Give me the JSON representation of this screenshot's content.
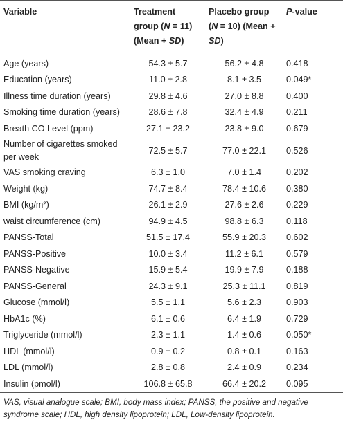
{
  "table": {
    "header": [
      [
        {
          "text": "Variable"
        }
      ],
      [
        {
          "text": "Treatment group ("
        },
        {
          "text": "N",
          "italic": true
        },
        {
          "text": " = 11) (Mean + "
        },
        {
          "text": "SD",
          "italic": true
        },
        {
          "text": ")"
        }
      ],
      [
        {
          "text": "Placebo group ("
        },
        {
          "text": "N",
          "italic": true
        },
        {
          "text": " = 10) (Mean + "
        },
        {
          "text": "SD",
          "italic": true
        },
        {
          "text": ")"
        }
      ],
      [
        {
          "text": "P",
          "italic": true
        },
        {
          "text": "-value"
        }
      ]
    ],
    "rows": [
      [
        "Age (years)",
        "54.3 ± 5.7",
        "56.2 ± 4.8",
        "0.418"
      ],
      [
        "Education (years)",
        "11.0 ± 2.8",
        "8.1 ± 3.5",
        "0.049*"
      ],
      [
        "Illness time duration (years)",
        "29.8 ± 4.6",
        "27.0 ± 8.8",
        "0.400"
      ],
      [
        "Smoking time duration (years)",
        "28.6 ± 7.8",
        "32.4 ± 4.9",
        "0.211"
      ],
      [
        "Breath CO Level (ppm)",
        "27.1 ± 23.2",
        "23.8 ± 9.0",
        "0.679"
      ],
      [
        "Number of cigarettes smoked per week",
        "72.5 ± 5.7",
        "77.0 ± 22.1",
        "0.526"
      ],
      [
        "VAS smoking craving",
        "6.3 ± 1.0",
        "7.0 ± 1.4",
        "0.202"
      ],
      [
        "Weight (kg)",
        "74.7 ± 8.4",
        "78.4 ± 10.6",
        "0.380"
      ],
      [
        "BMI (kg/m²)",
        "26.1 ± 2.9",
        "27.6 ± 2.6",
        "0.229"
      ],
      [
        "waist circumference (cm)",
        "94.9 ± 4.5",
        "98.8 ± 6.3",
        "0.118"
      ],
      [
        "PANSS-Total",
        "51.5 ± 17.4",
        "55.9 ± 20.3",
        "0.602"
      ],
      [
        "PANSS-Positive",
        "10.0 ± 3.4",
        "11.2 ± 6.1",
        "0.579"
      ],
      [
        "PANSS-Negative",
        "15.9 ± 5.4",
        "19.9 ± 7.9",
        "0.188"
      ],
      [
        "PANSS-General",
        "24.3 ± 9.1",
        "25.3 ± 11.1",
        "0.819"
      ],
      [
        "Glucose (mmol/l)",
        "5.5 ± 1.1",
        "5.6 ± 2.3",
        "0.903"
      ],
      [
        "HbA1c (%)",
        "6.1 ± 0.6",
        "6.4 ± 1.9",
        "0.729"
      ],
      [
        "Triglyceride (mmol/l)",
        "2.3 ± 1.1",
        "1.4 ± 0.6",
        "0.050*"
      ],
      [
        "HDL (mmol/l)",
        "0.9 ± 0.2",
        "0.8 ± 0.1",
        "0.163"
      ],
      [
        "LDL (mmol/l)",
        "2.8 ± 0.8",
        "2.4 ± 0.9",
        "0.234"
      ],
      [
        "Insulin (pmol/l)",
        "106.8 ± 65.8",
        "66.4 ± 20.2",
        "0.095"
      ]
    ]
  },
  "footnote": "VAS, visual analogue scale; BMI, body mass index; PANSS, the positive and negative syndrome scale; HDL, high density lipoprotein; LDL, Low-density lipoprotein."
}
